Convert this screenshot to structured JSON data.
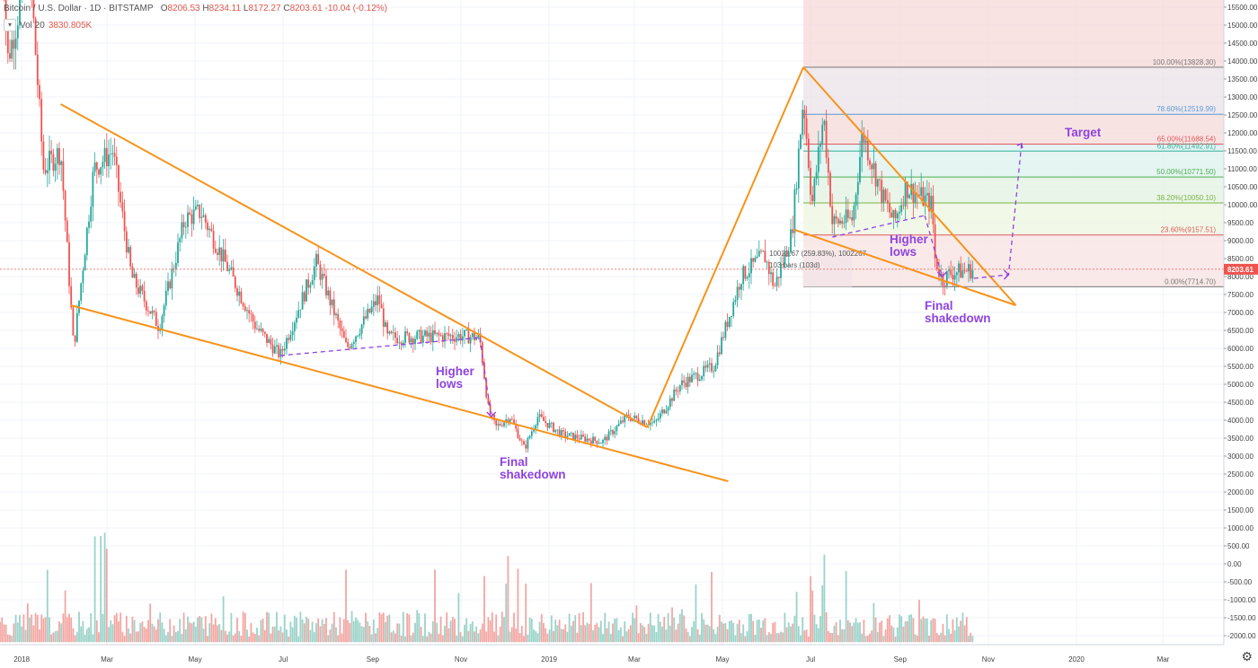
{
  "header": {
    "symbol": "Bitcoin / U.S. Dollar · 1D · BITSTAMP",
    "open_label": "O",
    "open": "8206.53",
    "high_label": "H",
    "high": "8234.11",
    "low_label": "L",
    "low": "8172.27",
    "close_label": "C",
    "close": "8203.61",
    "change": "-10.04 (-0.12%)",
    "vol_label": "Vol 20",
    "vol_value": "3830.805K",
    "toggle_icon": "chevron-down-icon",
    "settings_icon": "gear-icon"
  },
  "colors": {
    "up": "#26a69a",
    "down": "#ef5350",
    "orange": "#f7931a",
    "purple": "#8e44e0",
    "vol_up": "#9bd3c9",
    "vol_down": "#f3a6a2",
    "red_zone": "#f6d5d5",
    "green_zone": "#dff3ee"
  },
  "chart_data": {
    "type": "candlestick",
    "title": "Bitcoin / U.S. Dollar · 1D · BITSTAMP",
    "y_axis_ticks": [
      "15500.00",
      "15000.00",
      "14500.00",
      "14000.00",
      "13500.00",
      "13000.00",
      "12500.00",
      "12000.00",
      "11500.00",
      "11000.00",
      "10500.00",
      "10000.00",
      "9500.00",
      "9000.00",
      "8500.00",
      "8000.00",
      "7500.00",
      "7000.00",
      "6500.00",
      "6000.00",
      "5500.00",
      "5000.00",
      "4500.00",
      "4000.00",
      "3500.00",
      "3000.00",
      "2500.00",
      "2000.00",
      "1500.00",
      "1000.00",
      "500.00",
      "0.00",
      "-500.00",
      "-1000.00",
      "-1500.00",
      "-2000.00"
    ],
    "x_axis_ticks": [
      "2018",
      "Mar",
      "May",
      "Jul",
      "Sep",
      "Nov",
      "2019",
      "Mar",
      "May",
      "Jul",
      "Sep",
      "Nov",
      "2020",
      "Mar"
    ],
    "current_price": "8203.61",
    "price_path": [
      [
        "2017-12-17",
        19500
      ],
      [
        "2017-12-22",
        14000
      ],
      [
        "2017-12-28",
        15000
      ],
      [
        "2018-01-06",
        17000
      ],
      [
        "2018-01-16",
        11000
      ],
      [
        "2018-01-28",
        11500
      ],
      [
        "2018-02-06",
        6000
      ],
      [
        "2018-02-20",
        11000
      ],
      [
        "2018-03-05",
        11500
      ],
      [
        "2018-03-18",
        8000
      ],
      [
        "2018-04-06",
        6600
      ],
      [
        "2018-04-24",
        9600
      ],
      [
        "2018-05-05",
        9800
      ],
      [
        "2018-06-12",
        6600
      ],
      [
        "2018-06-29",
        5800
      ],
      [
        "2018-07-24",
        8400
      ],
      [
        "2018-08-14",
        6000
      ],
      [
        "2018-09-05",
        7400
      ],
      [
        "2018-09-11",
        6300
      ],
      [
        "2018-11-01",
        6350
      ],
      [
        "2018-11-14",
        6300
      ],
      [
        "2018-11-20",
        4300
      ],
      [
        "2018-11-25",
        3800
      ],
      [
        "2018-12-05",
        4100
      ],
      [
        "2018-12-15",
        3200
      ],
      [
        "2018-12-24",
        4100
      ],
      [
        "2019-01-10",
        3600
      ],
      [
        "2019-02-07",
        3400
      ],
      [
        "2019-02-24",
        4100
      ],
      [
        "2019-03-15",
        3900
      ],
      [
        "2019-04-02",
        5000
      ],
      [
        "2019-04-25",
        5500
      ],
      [
        "2019-05-14",
        8000
      ],
      [
        "2019-05-30",
        8600
      ],
      [
        "2019-06-06",
        7700
      ],
      [
        "2019-06-18",
        9200
      ],
      [
        "2019-06-26",
        13000
      ],
      [
        "2019-07-02",
        10000
      ],
      [
        "2019-07-10",
        12500
      ],
      [
        "2019-07-16",
        9500
      ],
      [
        "2019-07-30",
        9600
      ],
      [
        "2019-08-06",
        12000
      ],
      [
        "2019-08-20",
        10200
      ],
      [
        "2019-08-28",
        9500
      ],
      [
        "2019-09-05",
        10500
      ],
      [
        "2019-09-23",
        10000
      ],
      [
        "2019-09-25",
        8500
      ],
      [
        "2019-09-30",
        7900
      ],
      [
        "2019-10-06",
        8100
      ],
      [
        "2019-10-22",
        8200
      ]
    ],
    "annotations": {
      "left_higher_lows": "Higher\nlows",
      "left_final_shakedown": "Final\nshakedown",
      "right_higher_lows": "Higher\nlows",
      "right_final_shakedown": "Final\nshakedown",
      "target": "Target",
      "measure_label_1": "10022.67 (259.83%), 1002267",
      "measure_label_2": "103 bars (103d)"
    },
    "fib_levels": [
      {
        "label": "100.00%(13828.30)",
        "value": 13828.3,
        "color": "#787878"
      },
      {
        "label": "78.60%(12519.99)",
        "value": 12519.99,
        "color": "#5b9bd5"
      },
      {
        "label": "65.00%(11688.54)",
        "value": 11688.54,
        "color": "#e05a5a"
      },
      {
        "label": "61.80%(11492.91)",
        "value": 11492.91,
        "color": "#2fb39a"
      },
      {
        "label": "50.00%(10771.50)",
        "value": 10771.5,
        "color": "#4caf50"
      },
      {
        "label": "38.20%(10050.10)",
        "value": 10050.1,
        "color": "#7cb342"
      },
      {
        "label": "23.60%(9157.51)",
        "value": 9157.51,
        "color": "#e05a5a"
      },
      {
        "label": "0.00%(7714.70)",
        "value": 7714.7,
        "color": "#787878"
      }
    ],
    "trendlines": [
      {
        "name": "wedge1-upper",
        "from": [
          "2018-01-28",
          12800
        ],
        "to": [
          "2019-03-10",
          3800
        ]
      },
      {
        "name": "wedge1-lower",
        "from": [
          "2018-02-04",
          7200
        ],
        "to": [
          "2019-05-05",
          2300
        ]
      },
      {
        "name": "rally",
        "from": [
          "2019-03-10",
          3800
        ],
        "to": [
          "2019-06-26",
          13828
        ]
      },
      {
        "name": "wedge2-upper",
        "from": [
          "2019-06-26",
          13828
        ],
        "to": [
          "2019-11-20",
          7200
        ]
      },
      {
        "name": "wedge2-lower",
        "from": [
          "2019-06-20",
          9300
        ],
        "to": [
          "2019-11-20",
          7200
        ]
      }
    ],
    "projection_target": [
      "2019-11-24",
      11700
    ]
  }
}
